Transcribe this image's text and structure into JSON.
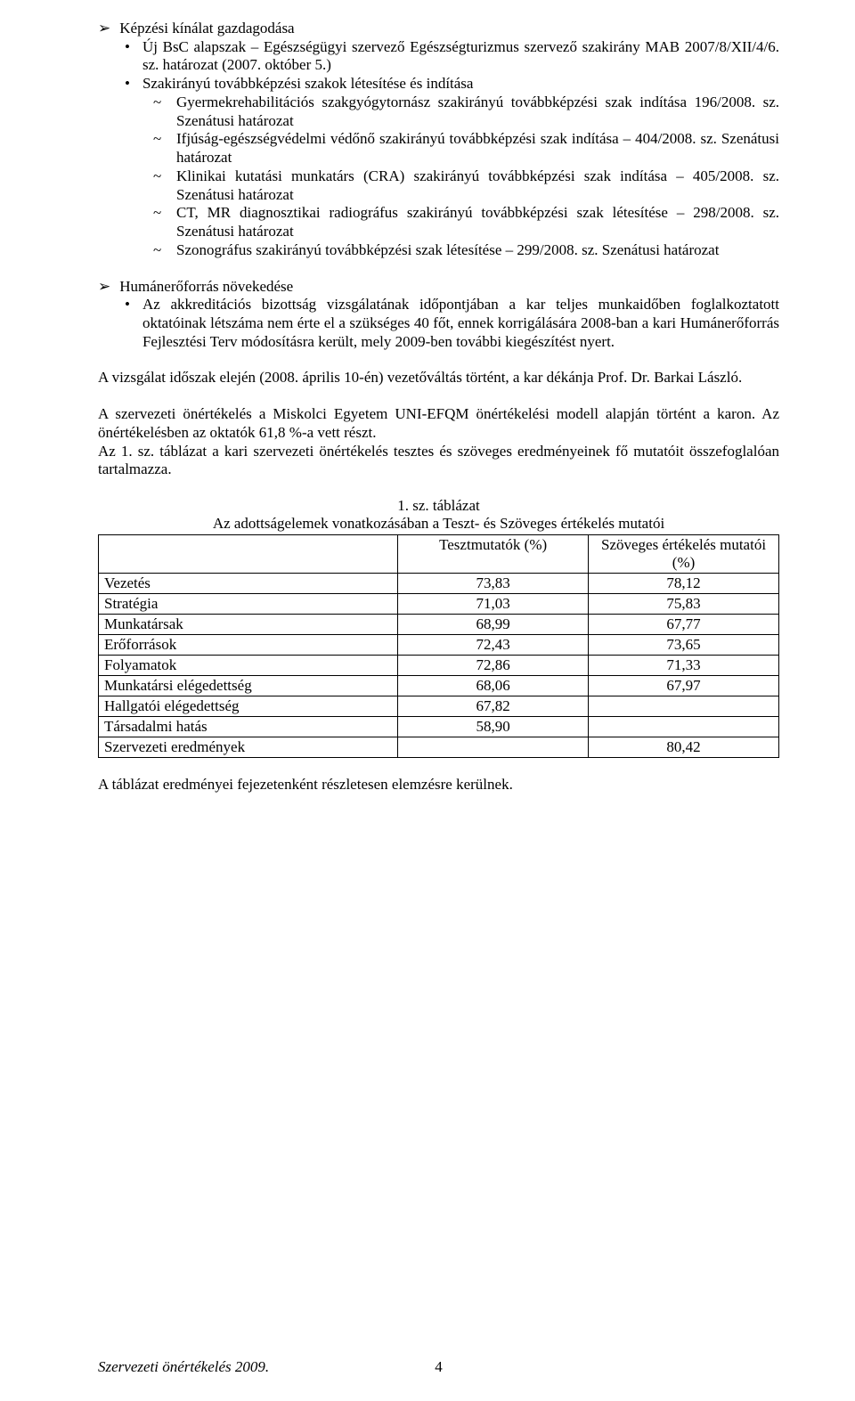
{
  "section1": {
    "title": "Képzési kínálat gazdagodása",
    "sub1a": "Új BsC alapszak – Egészségügyi szervező Egészségturizmus szervező szakirány MAB 2007/8/XII/4/6. sz. határozat (2007. október 5.)",
    "sub1b": "Szakirányú továbbképzési szakok létesítése és indítása",
    "sub2_1": "Gyermekrehabilitációs szakgyógytornász szakirányú továbbképzési szak indítása 196/2008. sz. Szenátusi határozat",
    "sub2_2": "Ifjúság-egészségvédelmi védőnő szakirányú továbbképzési szak indítása – 404/2008. sz. Szenátusi határozat",
    "sub2_3": "Klinikai kutatási munkatárs (CRA) szakirányú továbbképzési szak indítása – 405/2008. sz. Szenátusi határozat",
    "sub2_4": "CT, MR diagnosztikai radiográfus szakirányú továbbképzési szak létesítése – 298/2008. sz. Szenátusi határozat",
    "sub2_5": "Szonográfus szakirányú továbbképzési szak létesítése – 299/2008. sz. Szenátusi határozat"
  },
  "section2": {
    "title": "Humánerőforrás növekedése",
    "sub1": "Az akkreditációs bizottság vizsgálatának időpontjában a kar teljes munkaidőben foglalkoztatott oktatóinak létszáma nem érte el a szükséges 40 főt, ennek korrigálására 2008-ban a kari Humánerőforrás Fejlesztési Terv módosításra került, mely 2009-ben további kiegészítést nyert."
  },
  "para1": "A vizsgálat időszak elején (2008. április 10-én) vezetőváltás történt, a kar dékánja Prof. Dr. Barkai László.",
  "para2": "A szervezeti önértékelés a Miskolci Egyetem UNI-EFQM önértékelési modell alapján történt a karon. Az önértékelésben az oktatók 61,8 %-a vett részt.",
  "para3": "Az 1. sz. táblázat a kari szervezeti önértékelés tesztes és szöveges eredményeinek fő mutatóit összefoglalóan tartalmazza.",
  "table": {
    "caption1": "1. sz. táblázat",
    "caption2": "Az adottságelemek vonatkozásában a Teszt- és Szöveges értékelés mutatói",
    "headers": [
      "",
      "Tesztmutatók (%)",
      "Szöveges értékelés mutatói (%)"
    ],
    "rows": [
      [
        "Vezetés",
        "73,83",
        "78,12"
      ],
      [
        "Stratégia",
        "71,03",
        "75,83"
      ],
      [
        "Munkatársak",
        "68,99",
        "67,77"
      ],
      [
        "Erőforrások",
        "72,43",
        "73,65"
      ],
      [
        "Folyamatok",
        "72,86",
        "71,33"
      ],
      [
        "Munkatársi elégedettség",
        "68,06",
        "67,97"
      ],
      [
        "Hallgatói elégedettség",
        "67,82",
        ""
      ],
      [
        "Társadalmi hatás",
        "58,90",
        ""
      ],
      [
        "Szervezeti eredmények",
        "",
        "80,42"
      ]
    ]
  },
  "para4": "A táblázat eredményei fejezetenként részletesen elemzésre kerülnek.",
  "footer": {
    "left": "Szervezeti önértékelés 2009.",
    "page": "4"
  }
}
